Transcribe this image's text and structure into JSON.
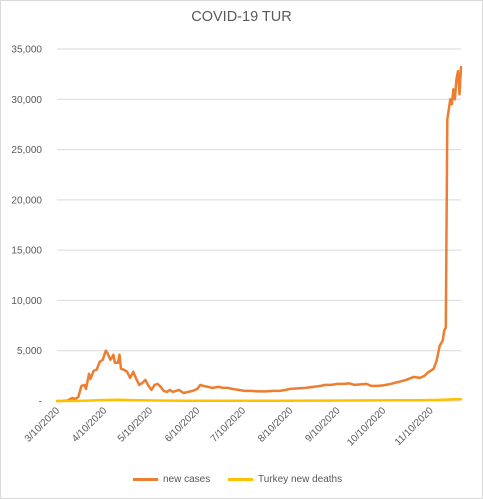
{
  "chart_data": {
    "type": "line",
    "title": "COVID-19 TUR",
    "xlabel": "",
    "ylabel": "",
    "ylim": [
      0,
      35000
    ],
    "y_ticks": [
      "-",
      "5,000",
      "10,000",
      "15,000",
      "20,000",
      "25,000",
      "30,000",
      "35,000"
    ],
    "x_range": [
      "2020-03-10",
      "2020-11-30"
    ],
    "x_ticks": [
      "3/10/2020",
      "4/10/2020",
      "5/10/2020",
      "6/10/2020",
      "7/10/2020",
      "8/10/2020",
      "9/10/2020",
      "10/10/2020",
      "11/10/2020"
    ],
    "grid": true,
    "legend_position": "bottom",
    "series": [
      {
        "name": "new cases",
        "color": "#ed7d31",
        "points": [
          [
            "2020-03-10",
            0
          ],
          [
            "2020-03-14",
            5
          ],
          [
            "2020-03-17",
            50
          ],
          [
            "2020-03-20",
            300
          ],
          [
            "2020-03-22",
            200
          ],
          [
            "2020-03-24",
            400
          ],
          [
            "2020-03-26",
            1500
          ],
          [
            "2020-03-28",
            1600
          ],
          [
            "2020-03-29",
            1200
          ],
          [
            "2020-03-31",
            2700
          ],
          [
            "2020-04-01",
            2200
          ],
          [
            "2020-04-03",
            3000
          ],
          [
            "2020-04-05",
            3100
          ],
          [
            "2020-04-07",
            3900
          ],
          [
            "2020-04-09",
            4100
          ],
          [
            "2020-04-11",
            5000
          ],
          [
            "2020-04-12",
            4800
          ],
          [
            "2020-04-14",
            4100
          ],
          [
            "2020-04-15",
            4300
          ],
          [
            "2020-04-16",
            4600
          ],
          [
            "2020-04-17",
            3800
          ],
          [
            "2020-04-19",
            3800
          ],
          [
            "2020-04-20",
            4600
          ],
          [
            "2020-04-21",
            3200
          ],
          [
            "2020-04-23",
            3100
          ],
          [
            "2020-04-25",
            2900
          ],
          [
            "2020-04-27",
            2300
          ],
          [
            "2020-04-29",
            2900
          ],
          [
            "2020-05-01",
            2200
          ],
          [
            "2020-05-03",
            1600
          ],
          [
            "2020-05-05",
            1800
          ],
          [
            "2020-05-07",
            2100
          ],
          [
            "2020-05-09",
            1500
          ],
          [
            "2020-05-11",
            1100
          ],
          [
            "2020-05-13",
            1600
          ],
          [
            "2020-05-15",
            1700
          ],
          [
            "2020-05-17",
            1400
          ],
          [
            "2020-05-19",
            1000
          ],
          [
            "2020-05-21",
            900
          ],
          [
            "2020-05-23",
            1100
          ],
          [
            "2020-05-25",
            900
          ],
          [
            "2020-05-27",
            1000
          ],
          [
            "2020-05-29",
            1100
          ],
          [
            "2020-06-01",
            800
          ],
          [
            "2020-06-04",
            900
          ],
          [
            "2020-06-07",
            1000
          ],
          [
            "2020-06-10",
            1200
          ],
          [
            "2020-06-12",
            1600
          ],
          [
            "2020-06-14",
            1500
          ],
          [
            "2020-06-17",
            1400
          ],
          [
            "2020-06-20",
            1300
          ],
          [
            "2020-06-24",
            1400
          ],
          [
            "2020-06-27",
            1300
          ],
          [
            "2020-06-30",
            1300
          ],
          [
            "2020-07-03",
            1200
          ],
          [
            "2020-07-07",
            1100
          ],
          [
            "2020-07-11",
            1000
          ],
          [
            "2020-07-15",
            1000
          ],
          [
            "2020-07-20",
            950
          ],
          [
            "2020-07-25",
            950
          ],
          [
            "2020-07-30",
            1000
          ],
          [
            "2020-08-03",
            1000
          ],
          [
            "2020-08-07",
            1100
          ],
          [
            "2020-08-10",
            1200
          ],
          [
            "2020-08-15",
            1250
          ],
          [
            "2020-08-20",
            1300
          ],
          [
            "2020-08-25",
            1400
          ],
          [
            "2020-08-30",
            1500
          ],
          [
            "2020-09-02",
            1600
          ],
          [
            "2020-09-06",
            1600
          ],
          [
            "2020-09-10",
            1700
          ],
          [
            "2020-09-14",
            1700
          ],
          [
            "2020-09-18",
            1750
          ],
          [
            "2020-09-21",
            1600
          ],
          [
            "2020-09-25",
            1650
          ],
          [
            "2020-09-29",
            1700
          ],
          [
            "2020-10-02",
            1500
          ],
          [
            "2020-10-06",
            1500
          ],
          [
            "2020-10-10",
            1550
          ],
          [
            "2020-10-15",
            1700
          ],
          [
            "2020-10-20",
            1900
          ],
          [
            "2020-10-25",
            2100
          ],
          [
            "2020-10-30",
            2400
          ],
          [
            "2020-11-03",
            2300
          ],
          [
            "2020-11-06",
            2500
          ],
          [
            "2020-11-08",
            2800
          ],
          [
            "2020-11-10",
            3000
          ],
          [
            "2020-11-12",
            3200
          ],
          [
            "2020-11-14",
            4000
          ],
          [
            "2020-11-16",
            5500
          ],
          [
            "2020-11-18",
            6000
          ],
          [
            "2020-11-19",
            7000
          ],
          [
            "2020-11-20",
            7300
          ],
          [
            "2020-11-21",
            28000
          ],
          [
            "2020-11-22",
            29000
          ],
          [
            "2020-11-23",
            30000
          ],
          [
            "2020-11-24",
            29500
          ],
          [
            "2020-11-25",
            31000
          ],
          [
            "2020-11-26",
            30000
          ],
          [
            "2020-11-27",
            32000
          ],
          [
            "2020-11-28",
            32800
          ],
          [
            "2020-11-29",
            30500
          ],
          [
            "2020-11-30",
            33200
          ]
        ]
      },
      {
        "name": "Turkey new deaths",
        "color": "#ffc000",
        "points": [
          [
            "2020-03-10",
            0
          ],
          [
            "2020-03-25",
            10
          ],
          [
            "2020-04-01",
            50
          ],
          [
            "2020-04-10",
            100
          ],
          [
            "2020-04-20",
            120
          ],
          [
            "2020-05-01",
            80
          ],
          [
            "2020-05-15",
            50
          ],
          [
            "2020-06-01",
            30
          ],
          [
            "2020-07-01",
            20
          ],
          [
            "2020-08-01",
            20
          ],
          [
            "2020-09-01",
            40
          ],
          [
            "2020-10-01",
            60
          ],
          [
            "2020-10-20",
            70
          ],
          [
            "2020-11-01",
            80
          ],
          [
            "2020-11-15",
            110
          ],
          [
            "2020-11-20",
            140
          ],
          [
            "2020-11-25",
            170
          ],
          [
            "2020-11-30",
            190
          ]
        ]
      }
    ]
  }
}
